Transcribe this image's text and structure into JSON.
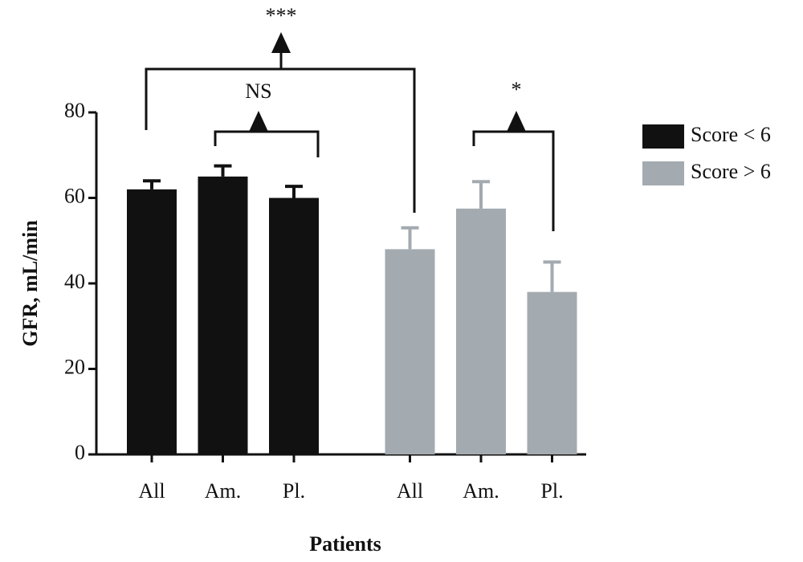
{
  "chart_data": {
    "type": "bar",
    "x_label": "Patients",
    "y_label": "GFR, mL/min",
    "categories": [
      "All",
      "Am.",
      "Pl.",
      "All",
      "Am.",
      "Pl."
    ],
    "series": [
      {
        "name": "Score < 6",
        "color": "#111111",
        "values": [
          62,
          65,
          60,
          null,
          null,
          null
        ],
        "errors": [
          2,
          2.5,
          2.7,
          null,
          null,
          null
        ]
      },
      {
        "name": "Score > 6",
        "color": "#a3aab0",
        "values": [
          null,
          null,
          null,
          48,
          57.5,
          38
        ],
        "errors": [
          null,
          null,
          null,
          5,
          6.3,
          7
        ]
      }
    ],
    "annotations": [
      "***",
      "NS",
      "*"
    ],
    "ylim": [
      0,
      80
    ],
    "yticks": [
      0,
      20,
      40,
      60,
      80
    ],
    "grid": false,
    "legend": "right"
  }
}
